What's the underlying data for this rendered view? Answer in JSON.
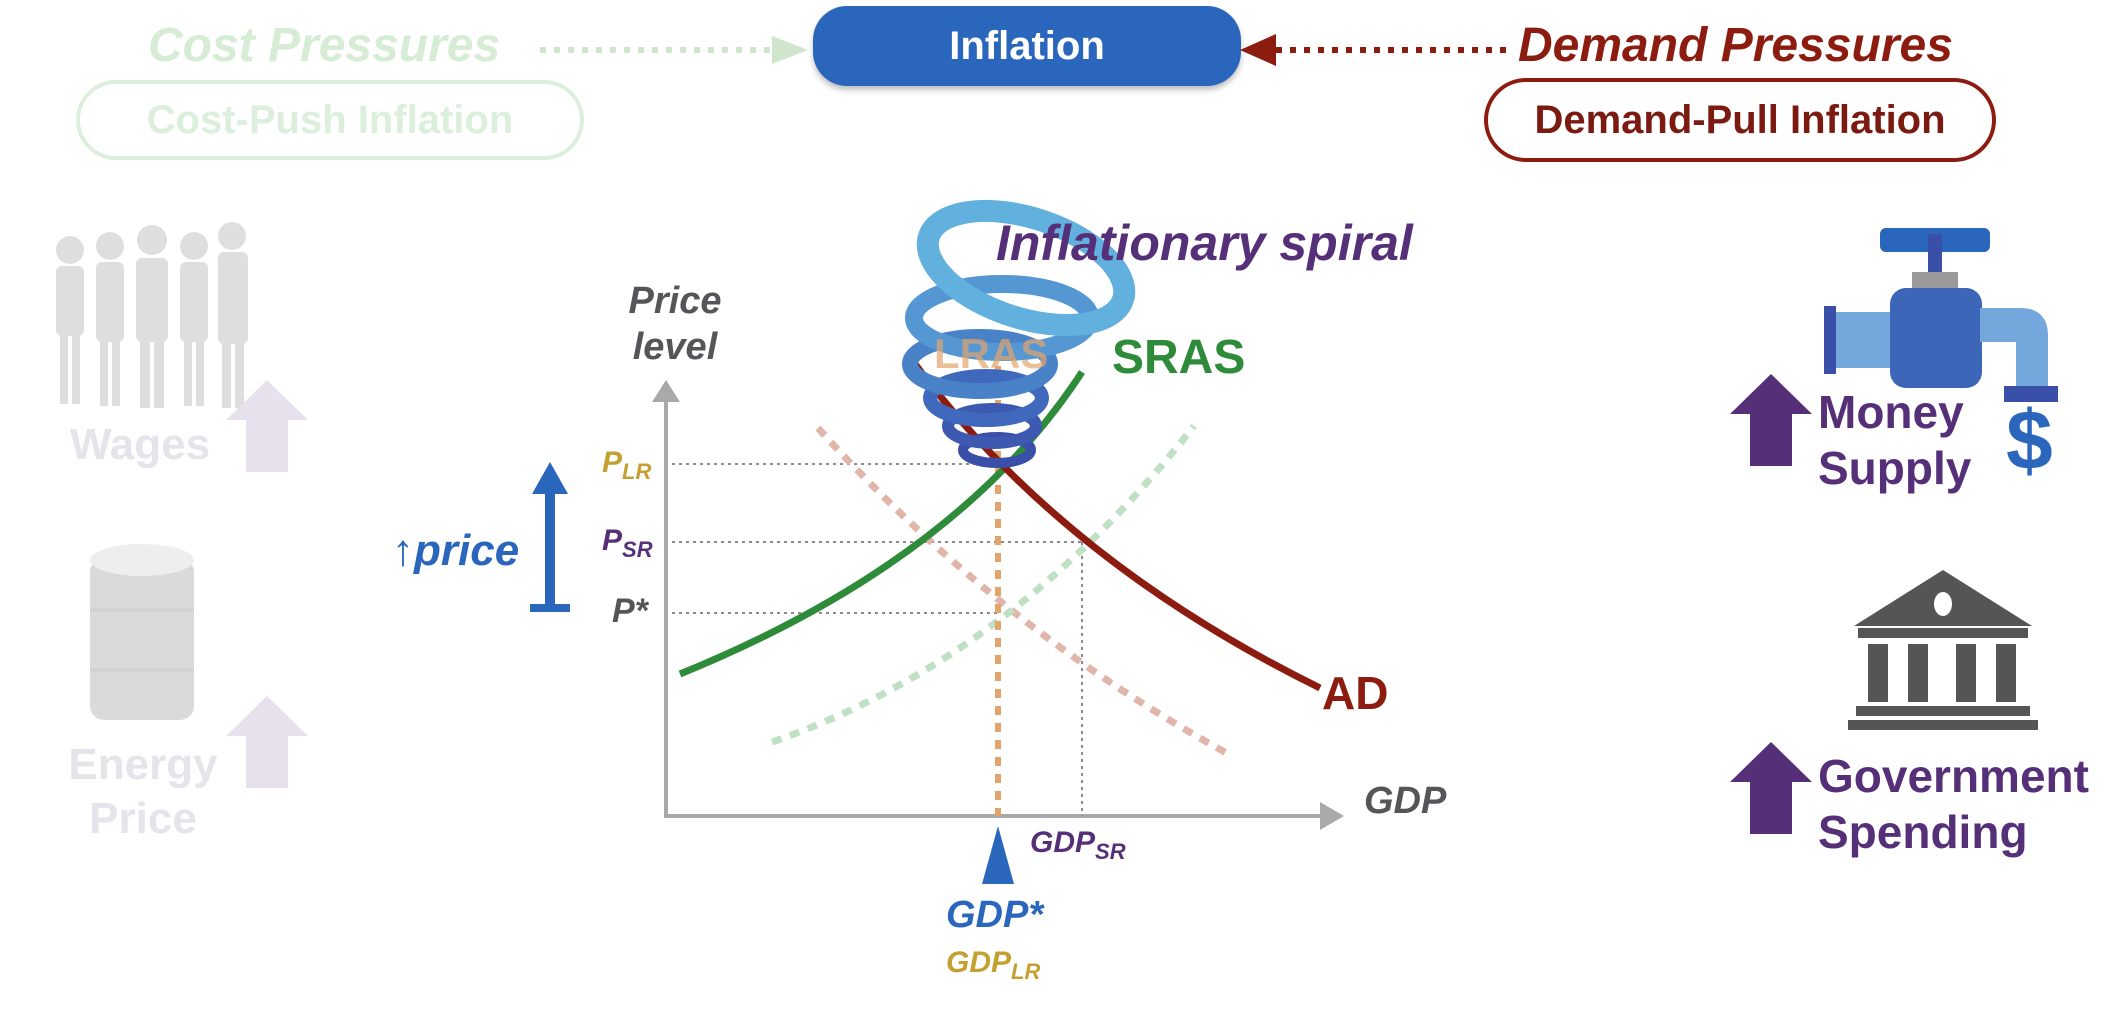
{
  "header": {
    "title": "Inflation",
    "cost_pressures": "Cost Pressures",
    "demand_pressures": "Demand Pressures",
    "cost_push": "Cost-Push Inflation",
    "demand_pull": "Demand-Pull Inflation"
  },
  "left_factors": {
    "wages": "Wages",
    "energy_line1": "Energy",
    "energy_line2": "Price"
  },
  "right_factors": {
    "money_line1": "Money",
    "money_line2": "Supply",
    "dollar_sign": "$",
    "gov_line1": "Government",
    "gov_line2": "Spending"
  },
  "diagram": {
    "spiral_label": "Inflationary spiral",
    "y_axis_line1": "Price",
    "y_axis_line2": "level",
    "x_axis": "GDP",
    "lras_label": "LRAS",
    "sras_label": "SRAS",
    "ad_label": "AD",
    "price_up_label": "↑price",
    "p_lr": "P",
    "p_lr_sub": "LR",
    "p_sr": "P",
    "p_sr_sub": "SR",
    "p_star": "P*",
    "gdp_sr": "GDP",
    "gdp_sr_sub": "SR",
    "gdp_star": "GDP*",
    "gdp_lr": "GDP",
    "gdp_lr_sub": "LR"
  },
  "colors": {
    "inflation_blue": "#2b66bd",
    "demand_red": "#8c1c10",
    "sras_green": "#2e8b3a",
    "lras_orange": "#e3a46c",
    "purple": "#553078",
    "gold": "#c4a031"
  }
}
